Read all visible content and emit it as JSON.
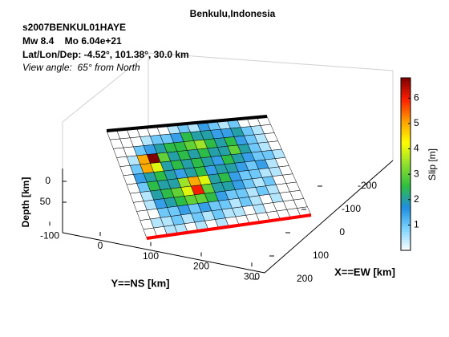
{
  "chart_data": {
    "type": "surface",
    "title": "Benkulu,Indonesia",
    "subtitle": [
      "s2007BENKUL01HAYE",
      "Mw 8.4    Mo 6.04e+21",
      "Lat/Lon/Dep: -4.52°, 101.38°, 30.0 km",
      "View angle:  65° from North"
    ],
    "xlabel": "X==EW [km]",
    "ylabel": "Y==NS [km]",
    "zlabel": "Depth [km]",
    "colorbar_label": "Slip [m]",
    "xticks": [
      -200,
      -100,
      0,
      100,
      200
    ],
    "yticks": [
      -100,
      0,
      100,
      200,
      300
    ],
    "zticks": [
      0,
      50
    ],
    "clim": [
      0,
      6.8
    ],
    "cticks": [
      1,
      2,
      3,
      4,
      5,
      6
    ],
    "colormap": [
      "#ffffff",
      "#7fd4ff",
      "#1f8fdf",
      "#2fbf3f",
      "#8fdf2f",
      "#ffff00",
      "#ff9f00",
      "#ff2000",
      "#800000"
    ],
    "slip": [
      [
        0,
        0,
        0,
        0,
        0,
        0,
        0.5,
        1,
        0.5,
        1.5,
        1,
        0.5,
        1,
        0,
        0,
        0
      ],
      [
        0,
        0,
        0,
        0.5,
        1,
        1,
        1.5,
        2.5,
        2,
        2,
        1.5,
        1.5,
        2,
        1,
        0.5,
        0
      ],
      [
        0,
        0,
        1,
        1.5,
        2,
        2.5,
        2.5,
        3,
        3.5,
        2.5,
        2,
        2.5,
        1.5,
        1,
        0.5,
        0
      ],
      [
        0,
        0.5,
        5,
        6.8,
        3,
        2,
        2.5,
        2,
        2.5,
        2,
        2,
        3,
        2,
        1,
        0.5,
        0
      ],
      [
        0,
        1,
        5,
        4,
        2,
        2.5,
        2,
        2.5,
        2,
        1.5,
        2.5,
        2,
        1.5,
        1,
        1,
        0.5
      ],
      [
        0,
        1.5,
        2,
        2.5,
        2,
        1.5,
        2,
        2.5,
        1.5,
        2,
        2,
        1.5,
        1,
        1.5,
        0.5,
        0
      ],
      [
        0,
        1,
        2.5,
        2,
        2,
        3.5,
        5,
        4,
        2,
        2.5,
        1.5,
        1,
        1,
        0.5,
        0.5,
        0
      ],
      [
        0,
        0.5,
        2,
        2.5,
        3,
        4,
        6,
        3,
        2,
        2,
        1.5,
        1,
        0.5,
        1,
        0,
        0
      ],
      [
        0,
        0.5,
        1.5,
        2,
        2.5,
        3,
        3,
        2.5,
        1.5,
        1,
        1,
        0.5,
        1,
        0.5,
        0,
        0
      ],
      [
        0,
        0,
        1,
        1,
        1.5,
        1,
        1.5,
        1,
        1,
        0.5,
        1,
        0.5,
        0,
        0.5,
        0,
        0
      ],
      [
        0,
        0.5,
        0.5,
        1,
        0.5,
        1,
        0.5,
        1,
        0.5,
        0.5,
        0,
        0.5,
        0,
        0,
        0,
        0
      ],
      [
        0,
        0,
        0.5,
        0.5,
        0,
        0.5,
        0,
        0.5,
        0,
        0,
        0,
        0,
        0,
        0,
        0,
        0
      ]
    ]
  }
}
